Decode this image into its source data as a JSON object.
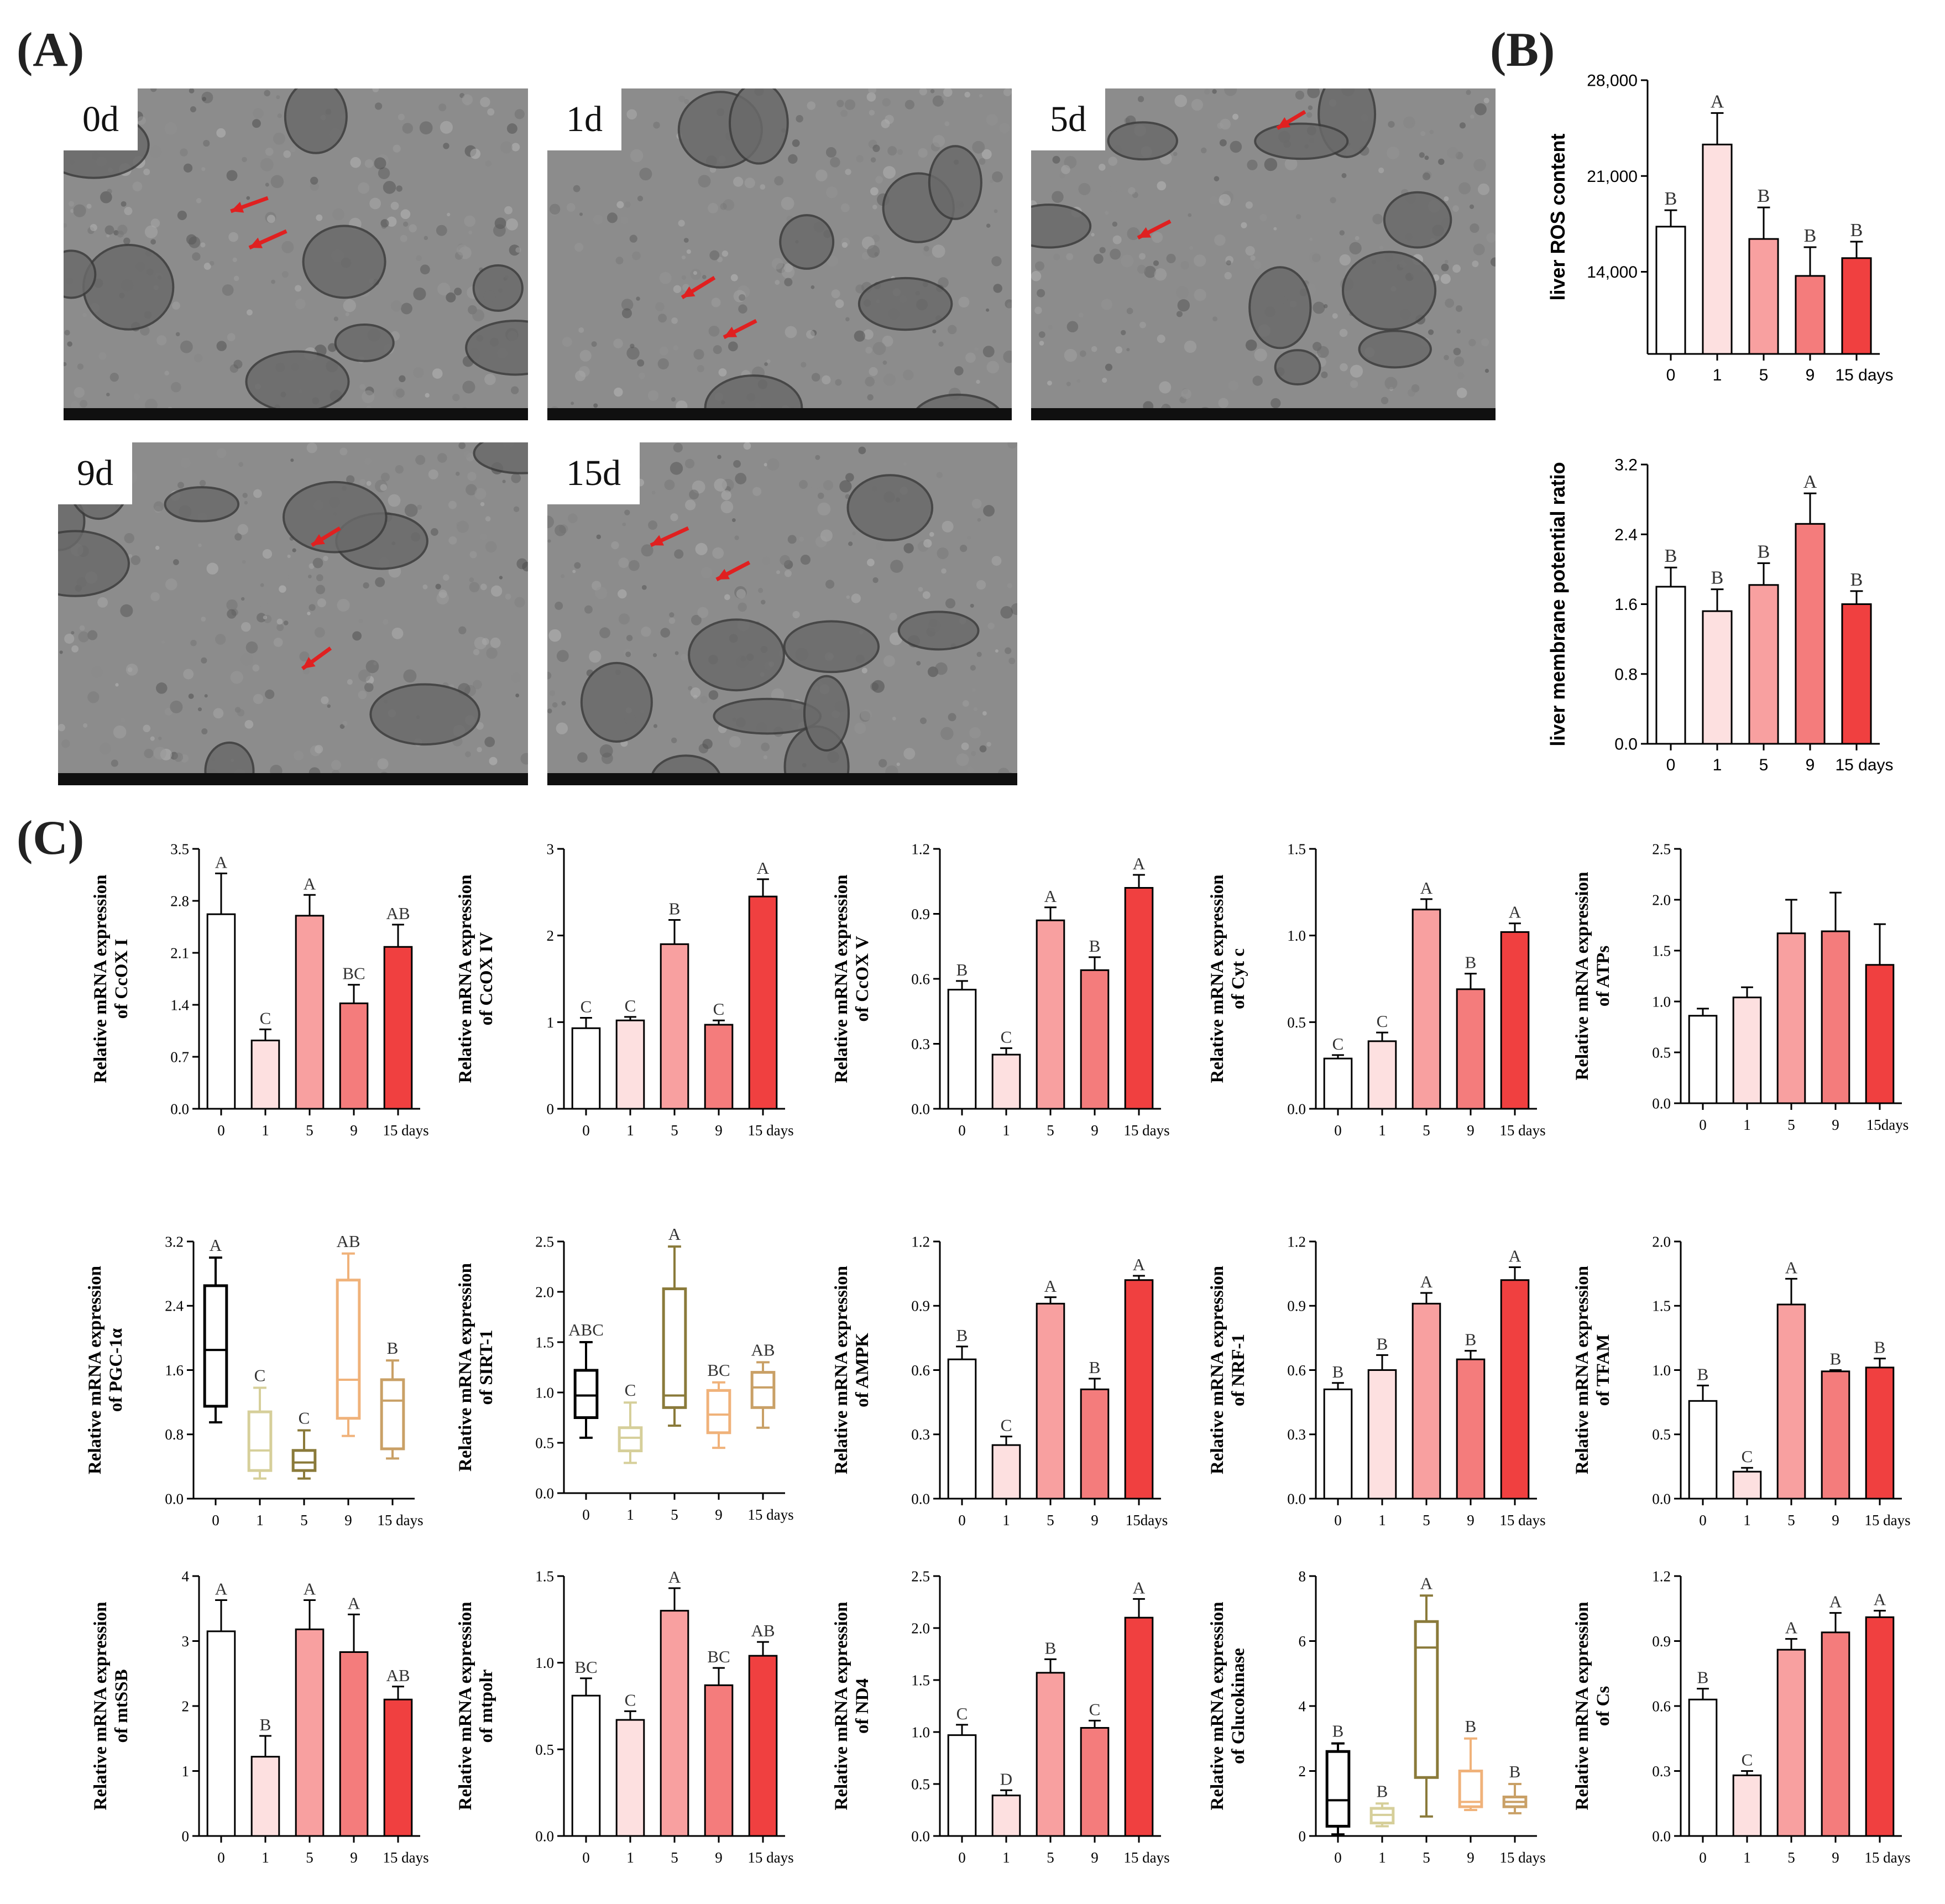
{
  "panel_labels": {
    "a": "(A)",
    "b": "(B)",
    "c": "(C)"
  },
  "micrographs": [
    {
      "label": "0d"
    },
    {
      "label": "1d"
    },
    {
      "label": "5d"
    },
    {
      "label": "9d"
    },
    {
      "label": "15d"
    }
  ],
  "colors": {
    "day0": "#ffffff",
    "day1": "#fde0e0",
    "day5": "#f8a0a0",
    "day9": "#f47c7c",
    "day15": "#f04040",
    "box_day0": "#000000",
    "box_day1": "#d6cf9a",
    "box_day5": "#8a7a3a",
    "box_day9": "#f0b27a",
    "box_day15": "#c9a066",
    "arrow": "#e02020"
  },
  "chart_data": [
    {
      "id": "ros",
      "type": "bar",
      "ylabel": "liver ROS content",
      "categories": [
        "0",
        "1",
        "5",
        "9",
        "15 days"
      ],
      "values": [
        17300,
        23300,
        16400,
        13700,
        15000
      ],
      "errors": [
        1200,
        2300,
        2300,
        2100,
        1200
      ],
      "letters": [
        "B",
        "A",
        "B",
        "B",
        "B"
      ],
      "ylim": [
        8000,
        28000
      ],
      "yticks": [
        "14,000",
        "21,000",
        "28,000"
      ],
      "ytick_values": [
        14000,
        21000,
        28000
      ]
    },
    {
      "id": "mmp",
      "type": "bar",
      "ylabel": "liver membrane potential ratio",
      "categories": [
        "0",
        "1",
        "5",
        "9",
        "15 days"
      ],
      "values": [
        1.8,
        1.52,
        1.82,
        2.52,
        1.6
      ],
      "errors": [
        0.22,
        0.25,
        0.25,
        0.35,
        0.15
      ],
      "letters": [
        "B",
        "B",
        "B",
        "A",
        "B"
      ],
      "ylim": [
        0,
        3.2
      ],
      "yticks": [
        "0.0",
        "0.8",
        "1.6",
        "2.4",
        "3.2"
      ],
      "ytick_values": [
        0,
        0.8,
        1.6,
        2.4,
        3.2
      ]
    },
    {
      "id": "cox1",
      "type": "bar",
      "ylabel": "Relative mRNA expression of CcOX  I",
      "categories": [
        "0",
        "1",
        "5",
        "9",
        "15 days"
      ],
      "values": [
        2.62,
        0.92,
        2.6,
        1.42,
        2.18
      ],
      "errors": [
        0.55,
        0.15,
        0.28,
        0.25,
        0.3
      ],
      "letters": [
        "A",
        "C",
        "A",
        "BC",
        "AB"
      ],
      "ylim": [
        0,
        3.5
      ],
      "yticks": [
        "0.0",
        "0.7",
        "1.4",
        "2.1",
        "2.8",
        "3.5"
      ],
      "ytick_values": [
        0,
        0.7,
        1.4,
        2.1,
        2.8,
        3.5
      ]
    },
    {
      "id": "cox4",
      "type": "bar",
      "ylabel": "Relative mRNA expression of CcOX IV",
      "categories": [
        "0",
        "1",
        "5",
        "9",
        "15 days"
      ],
      "values": [
        0.93,
        1.02,
        1.9,
        0.97,
        2.45
      ],
      "errors": [
        0.12,
        0.04,
        0.28,
        0.05,
        0.2
      ],
      "letters": [
        "C",
        "C",
        "B",
        "C",
        "A"
      ],
      "ylim": [
        0,
        3
      ],
      "yticks": [
        "0",
        "1",
        "2",
        "3"
      ],
      "ytick_values": [
        0,
        1,
        2,
        3
      ]
    },
    {
      "id": "cox5",
      "type": "bar",
      "ylabel": "Relative mRNA expression of CcOX V",
      "categories": [
        "0",
        "1",
        "5",
        "9",
        "15 days"
      ],
      "values": [
        0.55,
        0.25,
        0.87,
        0.64,
        1.02
      ],
      "errors": [
        0.04,
        0.03,
        0.06,
        0.06,
        0.06
      ],
      "letters": [
        "B",
        "C",
        "A",
        "B",
        "A"
      ],
      "ylim": [
        0,
        1.2
      ],
      "yticks": [
        "0.0",
        "0.3",
        "0.6",
        "0.9",
        "1.2"
      ],
      "ytick_values": [
        0,
        0.3,
        0.6,
        0.9,
        1.2
      ]
    },
    {
      "id": "cytc",
      "type": "bar",
      "ylabel": "Relative mRNA expression of Cyt c",
      "categories": [
        "0",
        "1",
        "5",
        "9",
        "15 days"
      ],
      "values": [
        0.29,
        0.39,
        1.15,
        0.69,
        1.02
      ],
      "errors": [
        0.02,
        0.05,
        0.06,
        0.09,
        0.05
      ],
      "letters": [
        "C",
        "C",
        "A",
        "B",
        "A"
      ],
      "ylim": [
        0,
        1.5
      ],
      "yticks": [
        "0.0",
        "0.5",
        "1.0",
        "1.5"
      ],
      "ytick_values": [
        0,
        0.5,
        1.0,
        1.5
      ]
    },
    {
      "id": "atps",
      "type": "bar",
      "ylabel": "Relative mRNA expression of ATPs",
      "categories": [
        "0",
        "1",
        "5",
        "9",
        "15days"
      ],
      "values": [
        0.86,
        1.04,
        1.67,
        1.69,
        1.36
      ],
      "errors": [
        0.07,
        0.1,
        0.33,
        0.38,
        0.4
      ],
      "letters": [
        "",
        "",
        "",
        "",
        ""
      ],
      "ylim": [
        0,
        2.5
      ],
      "yticks": [
        "0.0",
        "0.5",
        "1.0",
        "1.5",
        "2.0",
        "2.5"
      ],
      "ytick_values": [
        0,
        0.5,
        1.0,
        1.5,
        2.0,
        2.5
      ]
    },
    {
      "id": "pgc",
      "type": "box",
      "ylabel": "Relative mRNA expression of PGC-1α",
      "categories": [
        "0",
        "1",
        "5",
        "9",
        "15 days"
      ],
      "boxes": [
        {
          "min": 0.95,
          "q1": 1.15,
          "median": 1.85,
          "q3": 2.65,
          "max": 3.0
        },
        {
          "min": 0.25,
          "q1": 0.35,
          "median": 0.6,
          "q3": 1.08,
          "max": 1.38
        },
        {
          "min": 0.25,
          "q1": 0.35,
          "median": 0.45,
          "q3": 0.6,
          "max": 0.85
        },
        {
          "min": 0.78,
          "q1": 1.0,
          "median": 1.48,
          "q3": 2.72,
          "max": 3.05
        },
        {
          "min": 0.5,
          "q1": 0.62,
          "median": 1.22,
          "q3": 1.48,
          "max": 1.72
        }
      ],
      "letters": [
        "A",
        "C",
        "C",
        "AB",
        "B"
      ],
      "ylim": [
        0,
        3.2
      ],
      "yticks": [
        "0.0",
        "0.8",
        "1.6",
        "2.4",
        "3.2"
      ],
      "ytick_values": [
        0,
        0.8,
        1.6,
        2.4,
        3.2
      ]
    },
    {
      "id": "sirt",
      "type": "box",
      "ylabel": "Relative mRNA expression of SIRT-1",
      "categories": [
        "0",
        "1",
        "5",
        "9",
        "15 days"
      ],
      "boxes": [
        {
          "min": 0.55,
          "q1": 0.75,
          "median": 0.97,
          "q3": 1.22,
          "max": 1.5
        },
        {
          "min": 0.3,
          "q1": 0.42,
          "median": 0.55,
          "q3": 0.65,
          "max": 0.9
        },
        {
          "min": 0.67,
          "q1": 0.85,
          "median": 0.97,
          "q3": 2.03,
          "max": 2.45
        },
        {
          "min": 0.45,
          "q1": 0.6,
          "median": 0.78,
          "q3": 1.02,
          "max": 1.1
        },
        {
          "min": 0.65,
          "q1": 0.85,
          "median": 1.05,
          "q3": 1.2,
          "max": 1.3
        }
      ],
      "letters": [
        "ABC",
        "C",
        "A",
        "BC",
        "AB"
      ],
      "ylim": [
        0,
        2.5
      ],
      "yticks": [
        "0.0",
        "0.5",
        "1.0",
        "1.5",
        "2.0",
        "2.5"
      ],
      "ytick_values": [
        0,
        0.5,
        1.0,
        1.5,
        2.0,
        2.5
      ]
    },
    {
      "id": "ampk",
      "type": "bar",
      "ylabel": "Relative mRNA expression of AMPK",
      "categories": [
        "0",
        "1",
        "5",
        "9",
        "15days"
      ],
      "values": [
        0.65,
        0.25,
        0.91,
        0.51,
        1.02
      ],
      "errors": [
        0.06,
        0.04,
        0.03,
        0.05,
        0.02
      ],
      "letters": [
        "B",
        "C",
        "A",
        "B",
        "A"
      ],
      "ylim": [
        0,
        1.2
      ],
      "yticks": [
        "0.0",
        "0.3",
        "0.6",
        "0.9",
        "1.2"
      ],
      "ytick_values": [
        0,
        0.3,
        0.6,
        0.9,
        1.2
      ]
    },
    {
      "id": "nrf",
      "type": "bar",
      "ylabel": "Relative mRNA expression of NRF-1",
      "categories": [
        "0",
        "1",
        "5",
        "9",
        "15 days"
      ],
      "values": [
        0.51,
        0.6,
        0.91,
        0.65,
        1.02
      ],
      "errors": [
        0.03,
        0.07,
        0.05,
        0.04,
        0.06
      ],
      "letters": [
        "B",
        "B",
        "A",
        "B",
        "A"
      ],
      "ylim": [
        0,
        1.2
      ],
      "yticks": [
        "0.0",
        "0.3",
        "0.6",
        "0.9",
        "1.2"
      ],
      "ytick_values": [
        0,
        0.3,
        0.6,
        0.9,
        1.2
      ]
    },
    {
      "id": "tfam",
      "type": "bar",
      "ylabel": "Relative mRNA expression of TFAM",
      "categories": [
        "0",
        "1",
        "5",
        "9",
        "15 days"
      ],
      "values": [
        0.76,
        0.21,
        1.51,
        0.99,
        1.02
      ],
      "errors": [
        0.12,
        0.03,
        0.2,
        0.01,
        0.07
      ],
      "letters": [
        "B",
        "C",
        "A",
        "B",
        "B"
      ],
      "ylim": [
        0,
        2.0
      ],
      "yticks": [
        "0.0",
        "0.5",
        "1.0",
        "1.5",
        "2.0"
      ],
      "ytick_values": [
        0,
        0.5,
        1.0,
        1.5,
        2.0
      ]
    },
    {
      "id": "mtssb",
      "type": "bar",
      "ylabel": "Relative mRNA expression of mtSSB",
      "categories": [
        "0",
        "1",
        "5",
        "9",
        "15 days"
      ],
      "values": [
        3.15,
        1.22,
        3.18,
        2.83,
        2.1
      ],
      "errors": [
        0.48,
        0.32,
        0.45,
        0.58,
        0.2
      ],
      "letters": [
        "A",
        "B",
        "A",
        "A",
        "AB"
      ],
      "ylim": [
        0,
        4
      ],
      "yticks": [
        "0",
        "1",
        "2",
        "3",
        "4"
      ],
      "ytick_values": [
        0,
        1,
        2,
        3,
        4
      ]
    },
    {
      "id": "mtpolr",
      "type": "bar",
      "ylabel": "Relative mRNA expression of mtpolr",
      "categories": [
        "0",
        "1",
        "5",
        "9",
        "15 days"
      ],
      "values": [
        0.81,
        0.67,
        1.3,
        0.87,
        1.04
      ],
      "errors": [
        0.1,
        0.05,
        0.13,
        0.1,
        0.08
      ],
      "letters": [
        "BC",
        "C",
        "A",
        "BC",
        "AB"
      ],
      "ylim": [
        0,
        1.5
      ],
      "yticks": [
        "0.0",
        "0.5",
        "1.0",
        "1.5"
      ],
      "ytick_values": [
        0,
        0.5,
        1.0,
        1.5
      ]
    },
    {
      "id": "nd4",
      "type": "bar",
      "ylabel": "Relative mRNA expression of ND4",
      "categories": [
        "0",
        "1",
        "5",
        "9",
        "15 days"
      ],
      "values": [
        0.97,
        0.39,
        1.57,
        1.04,
        2.1
      ],
      "errors": [
        0.1,
        0.05,
        0.13,
        0.07,
        0.18
      ],
      "letters": [
        "C",
        "D",
        "B",
        "C",
        "A"
      ],
      "ylim": [
        0,
        2.5
      ],
      "yticks": [
        "0.0",
        "0.5",
        "1.0",
        "1.5",
        "2.0",
        "2.5"
      ],
      "ytick_values": [
        0,
        0.5,
        1.0,
        1.5,
        2.0,
        2.5
      ]
    },
    {
      "id": "glk",
      "type": "box",
      "ylabel": "Relative mRNA expression of Glucokinase",
      "categories": [
        "0",
        "1",
        "5",
        "9",
        "15 days"
      ],
      "boxes": [
        {
          "min": 0.05,
          "q1": 0.3,
          "median": 1.1,
          "q3": 2.6,
          "max": 2.85
        },
        {
          "min": 0.3,
          "q1": 0.4,
          "median": 0.65,
          "q3": 0.85,
          "max": 1.0
        },
        {
          "min": 0.6,
          "q1": 1.8,
          "median": 5.8,
          "q3": 6.6,
          "max": 7.4
        },
        {
          "min": 0.8,
          "q1": 0.9,
          "median": 1.05,
          "q3": 2.0,
          "max": 3.0
        },
        {
          "min": 0.7,
          "q1": 0.9,
          "median": 1.05,
          "q3": 1.2,
          "max": 1.6
        }
      ],
      "letters": [
        "B",
        "B",
        "A",
        "B",
        "B"
      ],
      "ylim": [
        0,
        8
      ],
      "yticks": [
        "0",
        "2",
        "4",
        "6",
        "8"
      ],
      "ytick_values": [
        0,
        2,
        4,
        6,
        8
      ]
    },
    {
      "id": "cs",
      "type": "bar",
      "ylabel": "Relative mRNA expression of Cs",
      "categories": [
        "0",
        "1",
        "5",
        "9",
        "15 days"
      ],
      "values": [
        0.63,
        0.28,
        0.86,
        0.94,
        1.01
      ],
      "errors": [
        0.05,
        0.02,
        0.05,
        0.09,
        0.03
      ],
      "letters": [
        "B",
        "C",
        "A",
        "A",
        "A"
      ],
      "ylim": [
        0,
        1.2
      ],
      "yticks": [
        "0.0",
        "0.3",
        "0.6",
        "0.9",
        "1.2"
      ],
      "ytick_values": [
        0,
        0.3,
        0.6,
        0.9,
        1.2
      ]
    }
  ]
}
